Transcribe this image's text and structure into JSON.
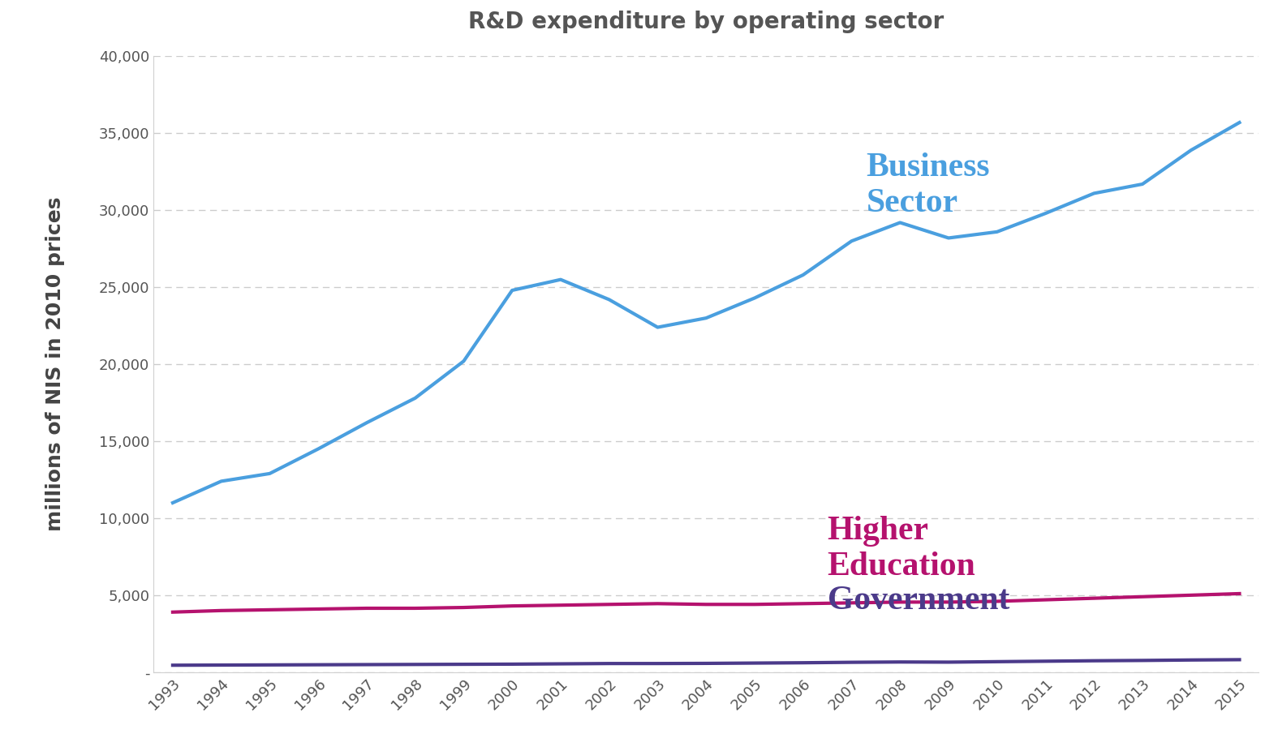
{
  "chart_data": {
    "type": "line",
    "title": "R&D expenditure by operating sector",
    "y_label": "millions of NIS in 2010 prices",
    "categories": [
      "1993",
      "1994",
      "1995",
      "1996",
      "1997",
      "1998",
      "1999",
      "2000",
      "2001",
      "2002",
      "2003",
      "2004",
      "2005",
      "2006",
      "2007",
      "2008",
      "2009",
      "2010",
      "2011",
      "2012",
      "2013",
      "2014",
      "2015"
    ],
    "series": [
      {
        "name": "Business Sector",
        "color": "#4a9fdf",
        "values": [
          11000,
          12400,
          12900,
          14500,
          16200,
          17800,
          20200,
          24800,
          25500,
          24200,
          22400,
          23000,
          24300,
          25800,
          28000,
          29200,
          28200,
          28600,
          29800,
          31100,
          31700,
          33900,
          35700
        ]
      },
      {
        "name": "Higher Education",
        "color": "#b5126e",
        "values": [
          3900,
          4000,
          4050,
          4100,
          4150,
          4150,
          4200,
          4300,
          4350,
          4400,
          4450,
          4400,
          4400,
          4450,
          4500,
          4550,
          4550,
          4600,
          4700,
          4800,
          4900,
          5000,
          5100
        ]
      },
      {
        "name": "Government",
        "color": "#4b3a8a",
        "values": [
          450,
          460,
          470,
          480,
          490,
          500,
          510,
          520,
          540,
          560,
          560,
          570,
          590,
          610,
          640,
          660,
          650,
          680,
          710,
          740,
          760,
          790,
          810
        ]
      }
    ],
    "ylim": [
      0,
      40000
    ],
    "yticks": [
      {
        "value": 0,
        "label": "-"
      },
      {
        "value": 5000,
        "label": "5,000"
      },
      {
        "value": 10000,
        "label": "10,000"
      },
      {
        "value": 15000,
        "label": "15,000"
      },
      {
        "value": 20000,
        "label": "20,000"
      },
      {
        "value": 25000,
        "label": "25,000"
      },
      {
        "value": 30000,
        "label": "30,000"
      },
      {
        "value": 35000,
        "label": "35,000"
      },
      {
        "value": 40000,
        "label": "40,000"
      }
    ],
    "grid": true
  }
}
